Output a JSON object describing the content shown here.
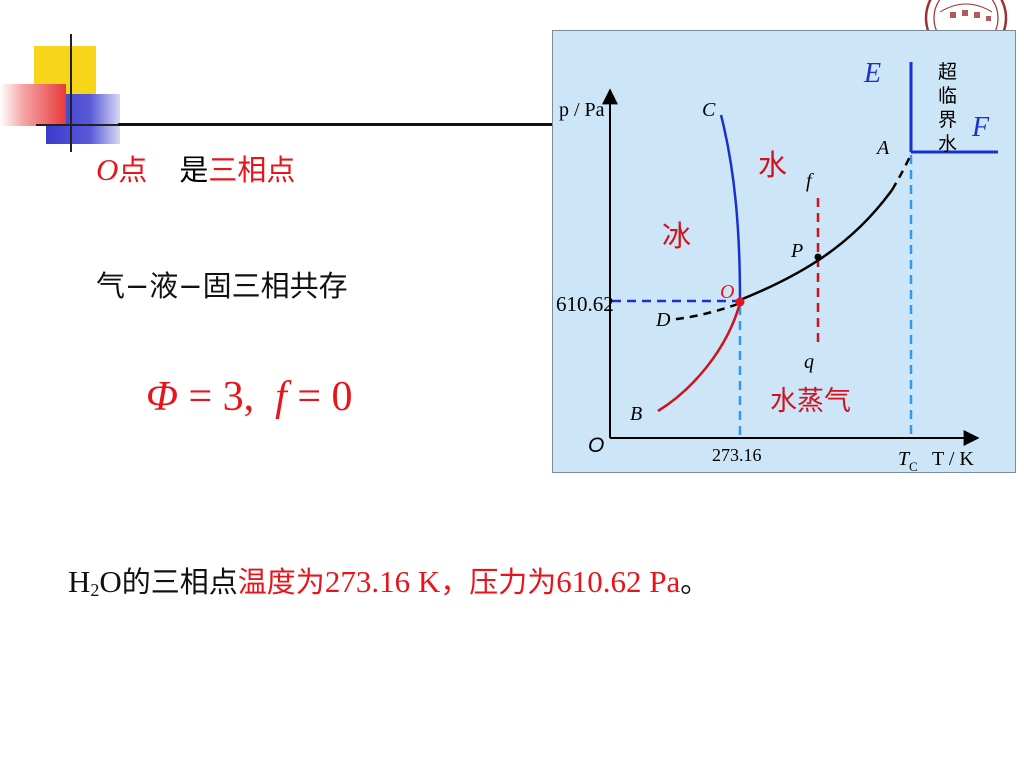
{
  "slide": {
    "line1": {
      "point_label": "O",
      "point_suffix": "点",
      "is_text": "是",
      "highlight": "三相点"
    },
    "line2": "气−液−固三相共存",
    "formula": {
      "phi": "Φ",
      "eq1": " = 3,",
      "f": "f",
      "eq2": " = 0"
    },
    "bottom": {
      "h": "H",
      "sub": "2",
      "o": "O",
      "text1": "的三相点",
      "red1": "温度为",
      "val1": "273.16 K",
      "red2": "，压力为",
      "val2": "610.62 Pa",
      "end": "。"
    }
  },
  "diagram": {
    "y_axis_label": "p / Pa",
    "x_axis_label": "T / K",
    "origin_label": "O",
    "triple_point_pressure": "610.62",
    "triple_point_temperature": "273.16",
    "critical_temperature_label": "T",
    "critical_temperature_sub": "C",
    "labels": {
      "C": "C",
      "A": "A",
      "B": "B",
      "D": "D",
      "O": "O",
      "P": "P",
      "f": "f",
      "q": "q",
      "E": "E",
      "F": "F"
    },
    "regions": {
      "ice": "冰",
      "water": "水",
      "vapor": "水蒸气",
      "supercritical": [
        "超",
        "临",
        "界",
        "水"
      ]
    },
    "colors": {
      "red_text": "#e8141b",
      "blue_line": "#1a30d0",
      "red_curve": "#d0121c",
      "dash_blue": "#3399ee",
      "dash_red": "#d0121c",
      "background": "#cce5f7"
    }
  }
}
